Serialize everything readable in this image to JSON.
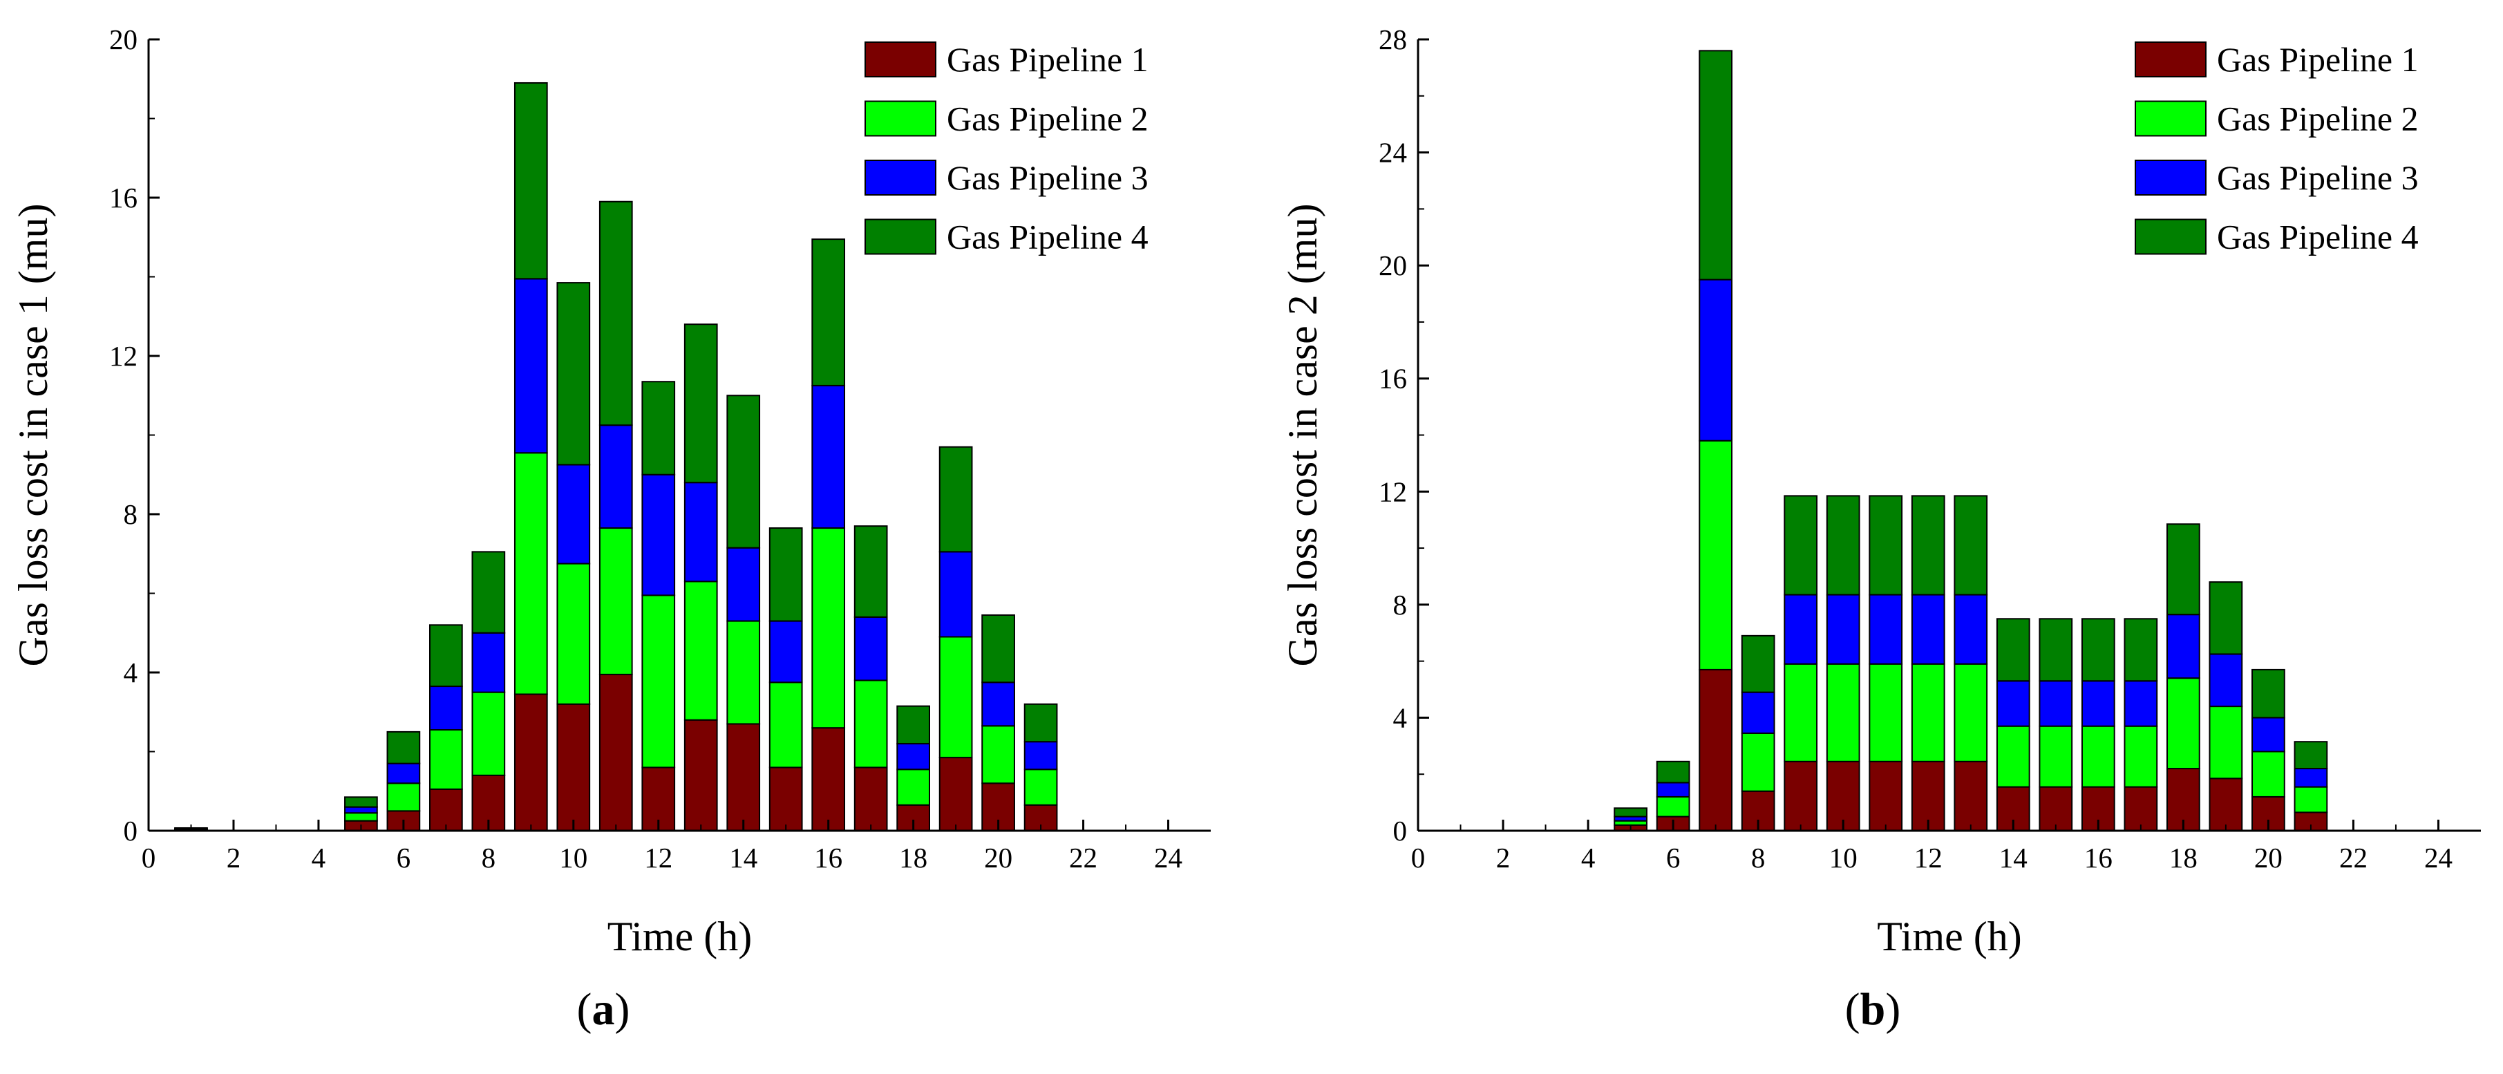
{
  "figure": {
    "caption_a": {
      "open": "(",
      "letter": "a",
      "close": ")"
    },
    "caption_b": {
      "open": "(",
      "letter": "b",
      "close": ")"
    }
  },
  "series_styles": [
    {
      "name": "Gas Pipeline 1",
      "color": "#7a0000"
    },
    {
      "name": "Gas Pipeline 2",
      "color": "#00ff00"
    },
    {
      "name": "Gas Pipeline 3",
      "color": "#0000ff"
    },
    {
      "name": "Gas Pipeline 4",
      "color": "#008000"
    }
  ],
  "chart_data": [
    {
      "id": "a",
      "type": "bar",
      "stacked": true,
      "xlabel": "Time (h)",
      "ylabel": "Gas loss cost in case 1 (mu)",
      "xlim": [
        0,
        25
      ],
      "ylim": [
        0,
        20
      ],
      "xticks": [
        0,
        2,
        4,
        6,
        8,
        10,
        12,
        14,
        16,
        18,
        20,
        22,
        24
      ],
      "yticks": [
        0,
        4,
        8,
        12,
        16,
        20
      ],
      "legend_position": "top-right",
      "x": [
        1,
        5,
        6,
        7,
        8,
        9,
        10,
        11,
        12,
        13,
        14,
        15,
        16,
        17,
        18,
        19,
        20,
        21
      ],
      "series": [
        {
          "name": "Gas Pipeline 1",
          "values": [
            0.03,
            0.25,
            0.5,
            1.05,
            1.4,
            3.45,
            3.2,
            3.95,
            1.6,
            2.8,
            2.7,
            1.6,
            2.6,
            1.6,
            0.65,
            1.85,
            1.2,
            0.65
          ]
        },
        {
          "name": "Gas Pipeline 2",
          "values": [
            0.01,
            0.2,
            0.7,
            1.5,
            2.1,
            6.1,
            3.55,
            3.7,
            4.35,
            3.5,
            2.6,
            2.15,
            5.05,
            2.2,
            0.9,
            3.05,
            1.45,
            0.9
          ]
        },
        {
          "name": "Gas Pipeline 3",
          "values": [
            0.01,
            0.15,
            0.5,
            1.1,
            1.5,
            4.4,
            2.5,
            2.6,
            3.05,
            2.5,
            1.85,
            1.55,
            3.6,
            1.6,
            0.65,
            2.15,
            1.1,
            0.7
          ]
        },
        {
          "name": "Gas Pipeline 4",
          "values": [
            0.02,
            0.25,
            0.8,
            1.55,
            2.05,
            4.95,
            4.6,
            5.65,
            2.35,
            4.0,
            3.85,
            2.35,
            3.7,
            2.3,
            0.95,
            2.65,
            1.7,
            0.95
          ]
        }
      ]
    },
    {
      "id": "b",
      "type": "bar",
      "stacked": true,
      "xlabel": "Time (h)",
      "ylabel": "Gas loss cost in case 2 (mu)",
      "xlim": [
        0,
        25
      ],
      "ylim": [
        0,
        28
      ],
      "xticks": [
        0,
        2,
        4,
        6,
        8,
        10,
        12,
        14,
        16,
        18,
        20,
        22,
        24
      ],
      "yticks": [
        0,
        4,
        8,
        12,
        16,
        20,
        24,
        28
      ],
      "legend_position": "top-right",
      "x": [
        5,
        6,
        7,
        8,
        9,
        10,
        11,
        12,
        13,
        14,
        15,
        16,
        17,
        18,
        19,
        20,
        21
      ],
      "series": [
        {
          "name": "Gas Pipeline 1",
          "values": [
            0.2,
            0.5,
            5.7,
            1.4,
            2.45,
            2.45,
            2.45,
            2.45,
            2.45,
            1.55,
            1.55,
            1.55,
            1.55,
            2.2,
            1.85,
            1.2,
            0.65
          ]
        },
        {
          "name": "Gas Pipeline 2",
          "values": [
            0.15,
            0.7,
            8.1,
            2.05,
            3.45,
            3.45,
            3.45,
            3.45,
            3.45,
            2.15,
            2.15,
            2.15,
            2.15,
            3.2,
            2.55,
            1.6,
            0.9
          ]
        },
        {
          "name": "Gas Pipeline 3",
          "values": [
            0.15,
            0.5,
            5.7,
            1.45,
            2.45,
            2.45,
            2.45,
            2.45,
            2.45,
            1.6,
            1.6,
            1.6,
            1.6,
            2.25,
            1.85,
            1.2,
            0.65
          ]
        },
        {
          "name": "Gas Pipeline 4",
          "values": [
            0.3,
            0.75,
            8.1,
            2.0,
            3.5,
            3.5,
            3.5,
            3.5,
            3.5,
            2.2,
            2.2,
            2.2,
            2.2,
            3.2,
            2.55,
            1.7,
            0.95
          ]
        }
      ]
    }
  ]
}
